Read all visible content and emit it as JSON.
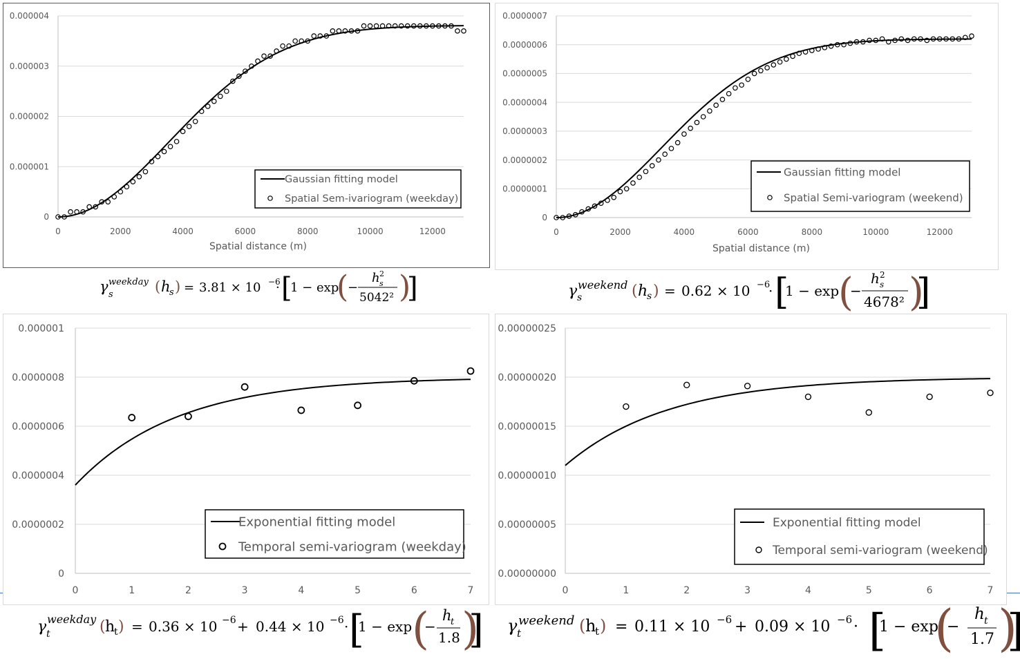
{
  "chart_data": [
    {
      "id": "spatial-weekday",
      "type": "scatter",
      "xlabel": "Spatial distance (m)",
      "ylabel": "",
      "xlim": [
        0,
        13000
      ],
      "ylim": [
        0,
        4e-06
      ],
      "xticks": [
        "0",
        "2000",
        "4000",
        "6000",
        "8000",
        "10000",
        "12000"
      ],
      "yticks": [
        "0",
        "0.000001",
        "0.000002",
        "0.000003",
        "0.000004"
      ],
      "grid": true,
      "legend_position": "bottom-right",
      "series": [
        {
          "name": "Gaussian fitting model",
          "kind": "line",
          "model": {
            "form": "gaussian",
            "nugget": 0,
            "sill": 3.81e-06,
            "range": 5042
          }
        },
        {
          "name": "Spatial Sem-ivariogram (weekday)",
          "kind": "scatter",
          "x": [
            0,
            200,
            400,
            600,
            800,
            1000,
            1200,
            1400,
            1600,
            1800,
            2000,
            2200,
            2400,
            2600,
            2800,
            3000,
            3200,
            3400,
            3600,
            3800,
            4000,
            4200,
            4400,
            4600,
            4800,
            5000,
            5200,
            5400,
            5600,
            5800,
            6000,
            6200,
            6400,
            6600,
            6800,
            7000,
            7200,
            7400,
            7600,
            7800,
            8000,
            8200,
            8400,
            8600,
            8800,
            9000,
            9200,
            9400,
            9600,
            9800,
            10000,
            10200,
            10400,
            10600,
            10800,
            11000,
            11200,
            11400,
            11600,
            11800,
            12000,
            12200,
            12400,
            12600,
            12800,
            13000
          ],
          "y": [
            0.0,
            0.0,
            1e-07,
            1e-07,
            1e-07,
            2e-07,
            2e-07,
            3e-07,
            3e-07,
            4e-07,
            5e-07,
            6e-07,
            7e-07,
            8e-07,
            9e-07,
            1.1e-06,
            1.2e-06,
            1.3e-06,
            1.4e-06,
            1.5e-06,
            1.7e-06,
            1.8e-06,
            1.9e-06,
            2.1e-06,
            2.2e-06,
            2.3e-06,
            2.4e-06,
            2.5e-06,
            2.7e-06,
            2.8e-06,
            2.9e-06,
            3e-06,
            3.1e-06,
            3.2e-06,
            3.2e-06,
            3.3e-06,
            3.4e-06,
            3.4e-06,
            3.5e-06,
            3.5e-06,
            3.5e-06,
            3.6e-06,
            3.6e-06,
            3.6e-06,
            3.7e-06,
            3.7e-06,
            3.7e-06,
            3.7e-06,
            3.7e-06,
            3.8e-06,
            3.8e-06,
            3.8e-06,
            3.8e-06,
            3.8e-06,
            3.8e-06,
            3.8e-06,
            3.8e-06,
            3.8e-06,
            3.8e-06,
            3.8e-06,
            3.8e-06,
            3.8e-06,
            3.8e-06,
            3.8e-06,
            3.7e-06,
            3.7e-06
          ]
        }
      ]
    },
    {
      "id": "spatial-weekend",
      "type": "scatter",
      "xlabel": "Spatial distance (m)",
      "ylabel": "",
      "xlim": [
        0,
        13000
      ],
      "ylim": [
        0,
        7e-07
      ],
      "xticks": [
        "0",
        "2000",
        "4000",
        "6000",
        "8000",
        "10000",
        "12000"
      ],
      "yticks": [
        "0",
        "0.0000001",
        "0.0000002",
        "0.0000003",
        "0.0000004",
        "0.0000005",
        "0.0000006",
        "0.0000007"
      ],
      "grid": true,
      "legend_position": "bottom-right",
      "series": [
        {
          "name": "Gaussian fitting model",
          "kind": "line",
          "model": {
            "form": "gaussian",
            "nugget": 0,
            "sill": 6.2e-07,
            "range": 4678
          }
        },
        {
          "name": "Spatial Semi-variogram (weekend)",
          "kind": "scatter",
          "x": [
            0,
            200,
            400,
            600,
            800,
            1000,
            1200,
            1400,
            1600,
            1800,
            2000,
            2200,
            2400,
            2600,
            2800,
            3000,
            3200,
            3400,
            3600,
            3800,
            4000,
            4200,
            4400,
            4600,
            4800,
            5000,
            5200,
            5400,
            5600,
            5800,
            6000,
            6200,
            6400,
            6600,
            6800,
            7000,
            7200,
            7400,
            7600,
            7800,
            8000,
            8200,
            8400,
            8600,
            8800,
            9000,
            9200,
            9400,
            9600,
            9800,
            10000,
            10200,
            10400,
            10600,
            10800,
            11000,
            11200,
            11400,
            11600,
            11800,
            12000,
            12200,
            12400,
            12600,
            12800,
            13000
          ],
          "y": [
            0.0,
            0.0,
            5e-09,
            1e-08,
            2e-08,
            3e-08,
            4e-08,
            5e-08,
            6e-08,
            7e-08,
            9e-08,
            1e-07,
            1.2e-07,
            1.4e-07,
            1.6e-07,
            1.8e-07,
            2e-07,
            2.2e-07,
            2.4e-07,
            2.6e-07,
            2.9e-07,
            3.1e-07,
            3.3e-07,
            3.5e-07,
            3.7e-07,
            3.9e-07,
            4.1e-07,
            4.3e-07,
            4.5e-07,
            4.6e-07,
            4.8e-07,
            5e-07,
            5.1e-07,
            5.2e-07,
            5.3e-07,
            5.4e-07,
            5.5e-07,
            5.6e-07,
            5.7e-07,
            5.75e-07,
            5.8e-07,
            5.85e-07,
            5.9e-07,
            5.95e-07,
            6e-07,
            6e-07,
            6.05e-07,
            6.1e-07,
            6.1e-07,
            6.15e-07,
            6.15e-07,
            6.2e-07,
            6.1e-07,
            6.15e-07,
            6.2e-07,
            6.15e-07,
            6.2e-07,
            6.2e-07,
            6.15e-07,
            6.2e-07,
            6.2e-07,
            6.2e-07,
            6.2e-07,
            6.2e-07,
            6.25e-07,
            6.3e-07
          ]
        }
      ]
    },
    {
      "id": "temporal-weekday",
      "type": "scatter",
      "xlabel": "",
      "ylabel": "",
      "xlim": [
        0,
        7
      ],
      "ylim": [
        0,
        1e-06
      ],
      "xticks": [
        "0",
        "1",
        "2",
        "3",
        "4",
        "5",
        "6",
        "7"
      ],
      "yticks": [
        "0",
        "0.0000002",
        "0.0000004",
        "0.0000006",
        "0.0000008",
        "0.000001"
      ],
      "grid": true,
      "legend_position": "bottom-right",
      "series": [
        {
          "name": "Exponential fitting model",
          "kind": "line",
          "model": {
            "form": "exponential",
            "nugget": 3.6e-07,
            "sill": 4.4e-07,
            "range": 1.8
          }
        },
        {
          "name": "Temporal semi-variogram (weekday)",
          "kind": "scatter",
          "x": [
            1,
            2,
            3,
            4,
            5,
            6,
            7
          ],
          "y": [
            6.35e-07,
            6.4e-07,
            7.6e-07,
            6.65e-07,
            6.85e-07,
            7.85e-07,
            8.25e-07
          ]
        }
      ]
    },
    {
      "id": "temporal-weekend",
      "type": "scatter",
      "xlabel": "",
      "ylabel": "",
      "xlim": [
        0,
        7
      ],
      "ylim": [
        0,
        2.5e-07
      ],
      "xticks": [
        "0",
        "1",
        "2",
        "3",
        "4",
        "5",
        "6",
        "7"
      ],
      "yticks": [
        "0.00000000",
        "0.00000005",
        "0.00000010",
        "0.00000015",
        "0.00000020",
        "0.00000025"
      ],
      "grid": true,
      "legend_position": "bottom-right",
      "series": [
        {
          "name": "Exponential fitting model",
          "kind": "line",
          "model": {
            "form": "exponential",
            "nugget": 1.1e-07,
            "sill": 9e-08,
            "range": 1.7
          }
        },
        {
          "name": "Temporal semi-variogram (weekend)",
          "kind": "scatter",
          "x": [
            1,
            2,
            3,
            4,
            5,
            6,
            7
          ],
          "y": [
            1.7e-07,
            1.92e-07,
            1.91e-07,
            1.8e-07,
            1.64e-07,
            1.8e-07,
            1.84e-07
          ]
        }
      ]
    }
  ],
  "formulas": {
    "spatial_weekday": {
      "gamma": "γ",
      "sub": "s",
      "sup": "weekday",
      "arg": "h",
      "argsub": "s",
      "coef": "3.81 × 10",
      "exp": "−6",
      "num": "h",
      "numsub": "s",
      "numsup": "2",
      "den": "5042²",
      "one_minus": "1 − exp"
    },
    "spatial_weekend": {
      "gamma": "γ",
      "sub": "s",
      "sup": "weekend",
      "arg": "h",
      "argsub": "s",
      "coef": "0.62 × 10",
      "exp": "−6",
      "num": "h",
      "numsub": "s",
      "numsup": "2",
      "den": "4678²",
      "one_minus": "1 − exp"
    },
    "temporal_weekday": {
      "gamma": "γ",
      "sub": "t",
      "sup": "weekday",
      "arg": "h",
      "argsub": "t",
      "nug": "0.36 × 10",
      "nugexp": "−6",
      "coef": "0.44 × 10",
      "exp": "−6",
      "num": "h",
      "numsub": "t",
      "den": "1.8",
      "one_minus": "1 − exp"
    },
    "temporal_weekend": {
      "gamma": "γ",
      "sub": "t",
      "sup": "weekend",
      "arg": "h",
      "argsub": "t",
      "nug": "0.11 × 10",
      "nugexp": "−6",
      "coef": "0.09 × 10",
      "exp": "−6",
      "num": "h",
      "numsub": "t",
      "den": "1.7",
      "one_minus": "1 − exp"
    }
  }
}
